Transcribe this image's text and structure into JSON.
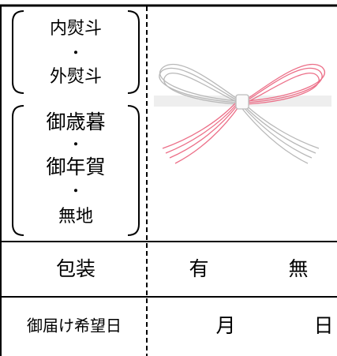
{
  "noshi_options": {
    "group1": [
      "内熨斗",
      "・",
      "外熨斗"
    ],
    "group2": [
      "御歳暮",
      "・",
      "御年賀",
      "・",
      "無地"
    ]
  },
  "rows": [
    {
      "label": "包装",
      "options": [
        "有",
        "無"
      ]
    },
    {
      "label": "御届け希望日",
      "fields": [
        "月",
        "日"
      ]
    }
  ]
}
